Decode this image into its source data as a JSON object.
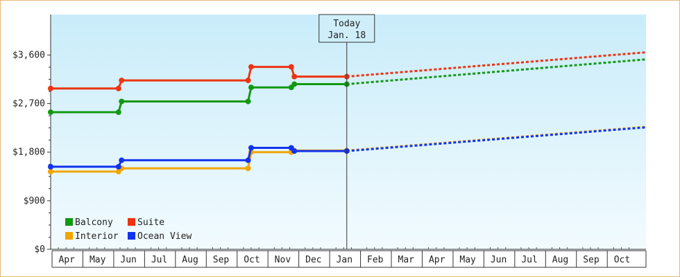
{
  "chart_data": {
    "type": "line",
    "title": "",
    "xlabel": "",
    "ylabel": "",
    "ylim": [
      0,
      4350
    ],
    "y_ticks": [
      0,
      900,
      1800,
      2700,
      3600
    ],
    "y_tick_labels": [
      "$0",
      "$900",
      "$1,800",
      "$2,700",
      "$3,600"
    ],
    "x_domain_months": [
      0,
      19.3
    ],
    "x_month_labels": [
      "Apr",
      "May",
      "Jun",
      "Jul",
      "Aug",
      "Sep",
      "Oct",
      "Nov",
      "Dec",
      "Jan",
      "Feb",
      "Mar",
      "Apr",
      "May",
      "Jun",
      "Jul",
      "Aug",
      "Sep",
      "Oct"
    ],
    "today_marker": {
      "line1": "Today",
      "line2": "Jan. 18",
      "x": 9.6
    },
    "legend_placement": "bottom-left",
    "grid": false,
    "series": [
      {
        "name": "Balcony",
        "color": "#119911",
        "points": [
          [
            0,
            2540
          ],
          [
            2.2,
            2540
          ],
          [
            2.3,
            2740
          ],
          [
            6.4,
            2740
          ],
          [
            6.5,
            3000
          ],
          [
            7.8,
            3000
          ],
          [
            7.9,
            3060
          ],
          [
            9.6,
            3060
          ]
        ],
        "forecast": [
          [
            9.6,
            3060
          ],
          [
            19.3,
            3520
          ]
        ]
      },
      {
        "name": "Suite",
        "color": "#ee3311",
        "points": [
          [
            0,
            2980
          ],
          [
            2.2,
            2980
          ],
          [
            2.3,
            3130
          ],
          [
            6.4,
            3130
          ],
          [
            6.5,
            3380
          ],
          [
            7.8,
            3380
          ],
          [
            7.9,
            3200
          ],
          [
            9.6,
            3200
          ]
        ],
        "forecast": [
          [
            9.6,
            3200
          ],
          [
            19.3,
            3650
          ]
        ]
      },
      {
        "name": "Interior",
        "color": "#f2a500",
        "points": [
          [
            0,
            1440
          ],
          [
            2.2,
            1440
          ],
          [
            2.3,
            1500
          ],
          [
            6.4,
            1500
          ],
          [
            6.5,
            1800
          ],
          [
            7.8,
            1800
          ],
          [
            7.9,
            1830
          ],
          [
            9.6,
            1830
          ]
        ],
        "forecast": [
          [
            9.6,
            1830
          ],
          [
            19.3,
            2270
          ]
        ]
      },
      {
        "name": "Ocean View",
        "color": "#1133ee",
        "points": [
          [
            0,
            1530
          ],
          [
            2.2,
            1530
          ],
          [
            2.3,
            1650
          ],
          [
            6.4,
            1650
          ],
          [
            6.5,
            1880
          ],
          [
            7.8,
            1880
          ],
          [
            7.9,
            1820
          ],
          [
            9.6,
            1820
          ]
        ],
        "forecast": [
          [
            9.6,
            1820
          ],
          [
            19.3,
            2260
          ]
        ]
      }
    ],
    "legend": [
      {
        "label": "Balcony",
        "color": "#119911"
      },
      {
        "label": "Suite",
        "color": "#ee3311"
      },
      {
        "label": "Interior",
        "color": "#f2a500"
      },
      {
        "label": "Ocean View",
        "color": "#1133ee"
      }
    ]
  }
}
